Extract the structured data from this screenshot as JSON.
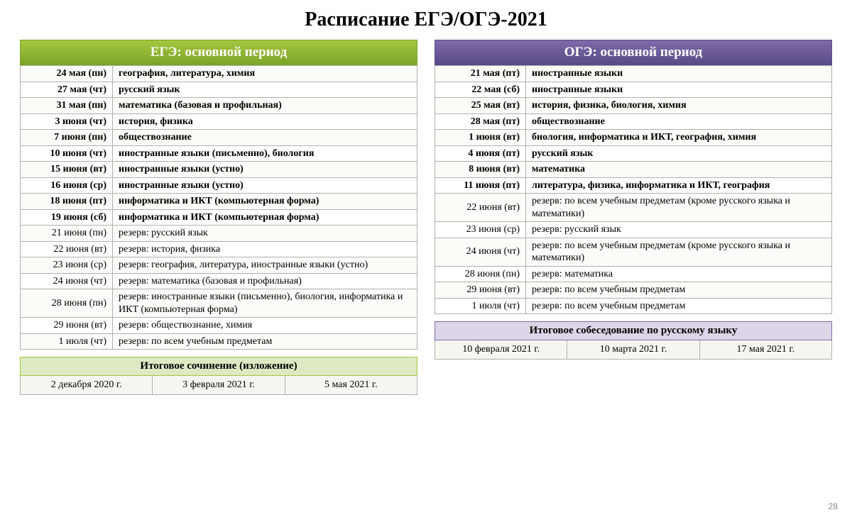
{
  "title": "Расписание ЕГЭ/ОГЭ-2021",
  "page_number": "28",
  "colors": {
    "green_grad_top": "#a5c73f",
    "green_grad_bot": "#7ba428",
    "purple_grad_top": "#7d6ca8",
    "purple_grad_bot": "#5a4a88",
    "green_light": "#dde9c3",
    "purple_light": "#ddd6e8",
    "border": "#b0b0b0"
  },
  "ege": {
    "header": "ЕГЭ: основной период",
    "rows": [
      {
        "date": "24 мая (пн)",
        "subj": "география, литература, химия",
        "bold": true
      },
      {
        "date": "27 мая (чт)",
        "subj": "русский язык",
        "bold": true
      },
      {
        "date": "31 мая (пн)",
        "subj": "математика  (базовая и профильная)",
        "bold": true
      },
      {
        "date": "3 июня (чт)",
        "subj": "история, физика",
        "bold": true
      },
      {
        "date": "7 июня (пн)",
        "subj": "обществознание",
        "bold": true
      },
      {
        "date": "10 июня (чт)",
        "subj": "иностранные языки (письменно), биология",
        "bold": true
      },
      {
        "date": "15 июня (вт)",
        "subj": "иностранные языки (устно)",
        "bold": true
      },
      {
        "date": "16 июня (ср)",
        "subj": "иностранные языки (устно)",
        "bold": true
      },
      {
        "date": "18 июня (пт)",
        "subj": "информатика и ИКТ (компьютерная форма)",
        "bold": true
      },
      {
        "date": "19 июня (сб)",
        "subj": "информатика и ИКТ (компьютерная форма)",
        "bold": true
      },
      {
        "date": "21 июня (пн)",
        "subj": "резерв:  русский язык",
        "bold": false
      },
      {
        "date": "22 июня (вт)",
        "subj": "резерв: история, физика",
        "bold": false
      },
      {
        "date": "23 июня (ср)",
        "subj": "резерв: география, литература, иностранные языки (устно)",
        "bold": false
      },
      {
        "date": "24 июня (чт)",
        "subj": "резерв: математика (базовая и профильная)",
        "bold": false
      },
      {
        "date": "28 июня (пн)",
        "subj": "резерв: иностранные языки (письменно), биология, информатика и ИКТ (компьютерная форма)",
        "bold": false
      },
      {
        "date": "29 июня (вт)",
        "subj": "резерв: обществознание, химия",
        "bold": false
      },
      {
        "date": "1 июля (чт)",
        "subj": "резерв: по всем учебным предметам",
        "bold": false
      }
    ],
    "footer_header": "Итоговое сочинение (изложение)",
    "footer_cells": [
      "2 декабря 2020 г.",
      "3 февраля 2021 г.",
      "5 мая 2021 г."
    ]
  },
  "oge": {
    "header": "ОГЭ: основной период",
    "rows": [
      {
        "date": "21 мая (пт)",
        "subj": "иностранные языки",
        "bold": true
      },
      {
        "date": "22 мая (сб)",
        "subj": "иностранные языки",
        "bold": true
      },
      {
        "date": "25 мая (вт)",
        "subj": "история, физика, биология, химия",
        "bold": true
      },
      {
        "date": "28 мая (пт)",
        "subj": "обществознание",
        "bold": true
      },
      {
        "date": "1 июня (вт)",
        "subj": "биология, информатика и ИКТ, география, химия",
        "bold": true
      },
      {
        "date": "4 июня (пт)",
        "subj": "русский язык",
        "bold": true
      },
      {
        "date": "8 июня (вт)",
        "subj": "математика",
        "bold": true
      },
      {
        "date": "11 июня (пт)",
        "subj": "литература, физика, информатика и ИКТ, география",
        "bold": true
      },
      {
        "date": "22 июня (вт)",
        "subj": "резерв: по всем учебным предметам (кроме русского языка и математики)",
        "bold": false
      },
      {
        "date": "23 июня (ср)",
        "subj": "резерв: русский язык",
        "bold": false
      },
      {
        "date": "24 июня (чт)",
        "subj": "резерв: по всем учебным предметам (кроме русского языка и математики)",
        "bold": false
      },
      {
        "date": "28 июня (пн)",
        "subj": "резерв: математика",
        "bold": false
      },
      {
        "date": "29 июня (вт)",
        "subj": "резерв: по всем учебным предметам",
        "bold": false
      },
      {
        "date": "1 июля (чт)",
        "subj": "резерв: по всем учебным предметам",
        "bold": false
      }
    ],
    "footer_header": "Итоговое собеседование по русскому языку",
    "footer_cells": [
      "10 февраля 2021 г.",
      "10 марта 2021 г.",
      "17 мая 2021 г."
    ]
  }
}
